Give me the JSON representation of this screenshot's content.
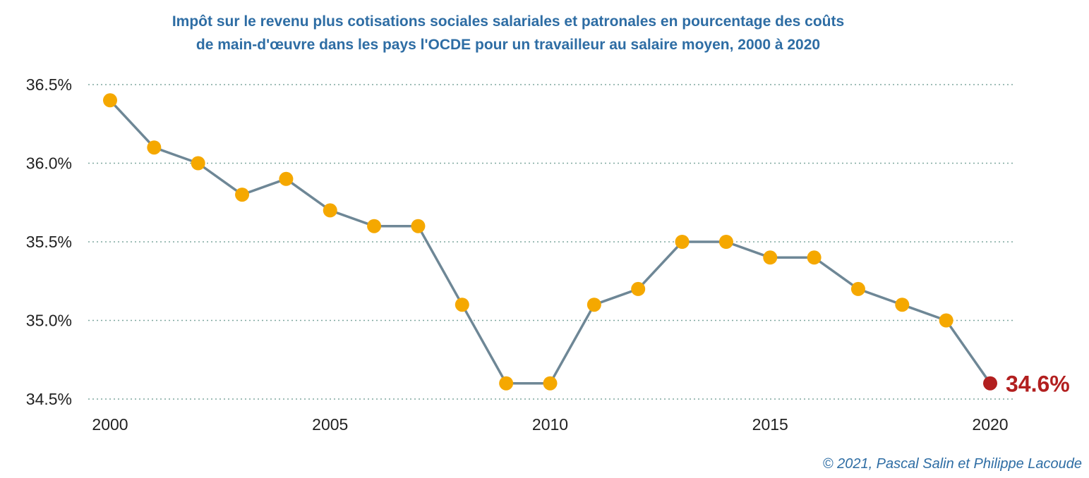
{
  "title_line1": "Impôt sur le revenu plus cotisations sociales salariales et patronales en pourcentage des coûts",
  "title_line2": "de main-d'œuvre dans les pays l'OCDE pour un travailleur au salaire moyen, 2000 à 2020",
  "copyright": "© 2021, Pascal Salin et Philippe Lacoude",
  "colors": {
    "title": "#2e6da4",
    "line": "#6e8796",
    "marker": "#f5a800",
    "last_marker": "#b21f1f",
    "gridline": "#7fa79f"
  },
  "chart_data": {
    "type": "line",
    "title": "Impôt sur le revenu plus cotisations sociales salariales et patronales en pourcentage des coûts de main-d'œuvre dans les pays l'OCDE pour un travailleur au salaire moyen, 2000 à 2020",
    "xlabel": "",
    "ylabel": "",
    "x": [
      2000,
      2001,
      2002,
      2003,
      2004,
      2005,
      2006,
      2007,
      2008,
      2009,
      2010,
      2011,
      2012,
      2013,
      2014,
      2015,
      2016,
      2017,
      2018,
      2019,
      2020
    ],
    "series": [
      {
        "values": [
          36.4,
          36.1,
          36.0,
          35.8,
          35.9,
          35.7,
          35.6,
          35.6,
          35.1,
          34.6,
          34.6,
          35.1,
          35.2,
          35.5,
          35.5,
          35.4,
          35.4,
          35.2,
          35.1,
          35.0,
          34.6
        ]
      }
    ],
    "ylim": [
      34.5,
      36.5
    ],
    "yticks": [
      36.5,
      36.0,
      35.5,
      35.0,
      34.5
    ],
    "ytick_labels": [
      "36.5%",
      "36.0%",
      "35.5%",
      "35.0%",
      "34.5%"
    ],
    "xticks": [
      2000,
      2005,
      2010,
      2015,
      2020
    ],
    "xtick_labels": [
      "2000",
      "2005",
      "2010",
      "2015",
      "2020"
    ],
    "callout_label": "34.6%",
    "grid": "horizontal dotted",
    "legend": "none"
  }
}
